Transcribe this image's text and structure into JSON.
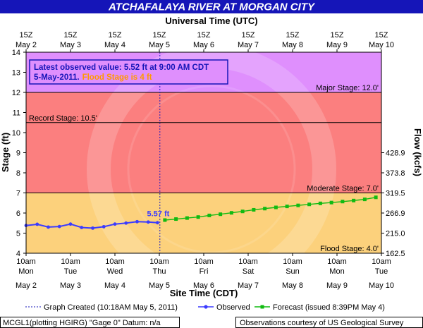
{
  "header": {
    "title": "ATCHAFALAYA RIVER AT MORGAN CITY",
    "top_axis_title": "Universal Time (UTC)"
  },
  "info_box": {
    "line1": "Latest observed value: 5.52 ft at 9:00 AM CDT",
    "line2_date": "5-May-2011.",
    "line2_flood": "Flood Stage is 4 ft"
  },
  "footer": {
    "graph_created": "Graph Created (10:18AM May 5, 2011)",
    "observed_label": "Observed",
    "forecast_label": "Forecast (issued 8:39PM May 4)",
    "gauge_info": "MCGL1(plotting HGIRG) \"Gage 0\" Datum: n/a",
    "courtesy": "Observations courtesy of US Geological Survey"
  },
  "chart_data": {
    "type": "line",
    "title": "ATCHAFALAYA RIVER AT MORGAN CITY",
    "xlabel": "Site Time (CDT)",
    "x2label": "Universal Time (UTC)",
    "ylabel": "Stage (ft)",
    "y2label": "Flow (kcfs)",
    "ylim": [
      4,
      14
    ],
    "xlim": [
      "2011-05-02 10:00",
      "2011-05-10 10:00"
    ],
    "y_ticks": [
      4,
      5,
      6,
      7,
      8,
      9,
      10,
      11,
      12,
      13,
      14
    ],
    "x_ticks_cdt": [
      {
        "time": "10am",
        "day": "Mon",
        "date": "May 2"
      },
      {
        "time": "10am",
        "day": "Tue",
        "date": "May 3"
      },
      {
        "time": "10am",
        "day": "Wed",
        "date": "May 4"
      },
      {
        "time": "10am",
        "day": "Thu",
        "date": "May 5"
      },
      {
        "time": "10am",
        "day": "Fri",
        "date": "May 6"
      },
      {
        "time": "10am",
        "day": "Sat",
        "date": "May 7"
      },
      {
        "time": "10am",
        "day": "Sun",
        "date": "May 8"
      },
      {
        "time": "10am",
        "day": "Mon",
        "date": "May 9"
      },
      {
        "time": "10am",
        "day": "Tue",
        "date": "May 10"
      }
    ],
    "x_ticks_utc": [
      {
        "time": "15Z",
        "date": "May 2"
      },
      {
        "time": "15Z",
        "date": "May 3"
      },
      {
        "time": "15Z",
        "date": "May 4"
      },
      {
        "time": "15Z",
        "date": "May 5"
      },
      {
        "time": "15Z",
        "date": "May 6"
      },
      {
        "time": "15Z",
        "date": "May 7"
      },
      {
        "time": "15Z",
        "date": "May 8"
      },
      {
        "time": "15Z",
        "date": "May 9"
      },
      {
        "time": "15Z",
        "date": "May 10"
      }
    ],
    "flow_ticks": [
      {
        "stage": 4,
        "label": "162.5"
      },
      {
        "stage": 5,
        "label": "215.0"
      },
      {
        "stage": 6,
        "label": "266.9"
      },
      {
        "stage": 7,
        "label": "319.5"
      },
      {
        "stage": 8,
        "label": "373.8"
      },
      {
        "stage": 9,
        "label": "428.9"
      }
    ],
    "flood_categories": [
      {
        "name": "Flood Stage: 4.0'",
        "value": 4.0,
        "color": "#fcd17c"
      },
      {
        "name": "Moderate Stage: 7.0'",
        "value": 7.0,
        "color": "#fb7f7f"
      },
      {
        "name": "Major Stage: 12.0'",
        "value": 12.0,
        "color": "#df8ffd"
      }
    ],
    "record_stage": {
      "name": "Record Stage: 10.5'",
      "value": 10.5
    },
    "graph_created": "2011-05-05 10:18",
    "observed_point_label": "5.57 ft",
    "series": [
      {
        "name": "Observed",
        "color": "#3b3bff",
        "x": [
          "2011-05-02 10:00",
          "2011-05-02 16:00",
          "2011-05-02 22:00",
          "2011-05-03 04:00",
          "2011-05-03 10:00",
          "2011-05-03 16:00",
          "2011-05-03 22:00",
          "2011-05-04 04:00",
          "2011-05-04 10:00",
          "2011-05-04 16:00",
          "2011-05-04 22:00",
          "2011-05-05 04:00",
          "2011-05-05 09:00"
        ],
        "y": [
          5.38,
          5.44,
          5.3,
          5.33,
          5.45,
          5.28,
          5.25,
          5.32,
          5.45,
          5.5,
          5.57,
          5.55,
          5.52
        ]
      },
      {
        "name": "Forecast (issued 8:39PM May 4)",
        "color": "#11bb11",
        "x": [
          "2011-05-05 13:00",
          "2011-05-05 19:00",
          "2011-05-06 01:00",
          "2011-05-06 07:00",
          "2011-05-06 13:00",
          "2011-05-06 19:00",
          "2011-05-07 01:00",
          "2011-05-07 07:00",
          "2011-05-07 13:00",
          "2011-05-07 19:00",
          "2011-05-08 01:00",
          "2011-05-08 07:00",
          "2011-05-08 13:00",
          "2011-05-08 19:00",
          "2011-05-09 01:00",
          "2011-05-09 07:00",
          "2011-05-09 13:00",
          "2011-05-09 19:00",
          "2011-05-10 01:00",
          "2011-05-10 07:00"
        ],
        "y": [
          5.65,
          5.7,
          5.75,
          5.8,
          5.88,
          5.94,
          6.01,
          6.08,
          6.16,
          6.22,
          6.28,
          6.33,
          6.38,
          6.43,
          6.48,
          6.52,
          6.57,
          6.62,
          6.68,
          6.78
        ]
      }
    ]
  }
}
